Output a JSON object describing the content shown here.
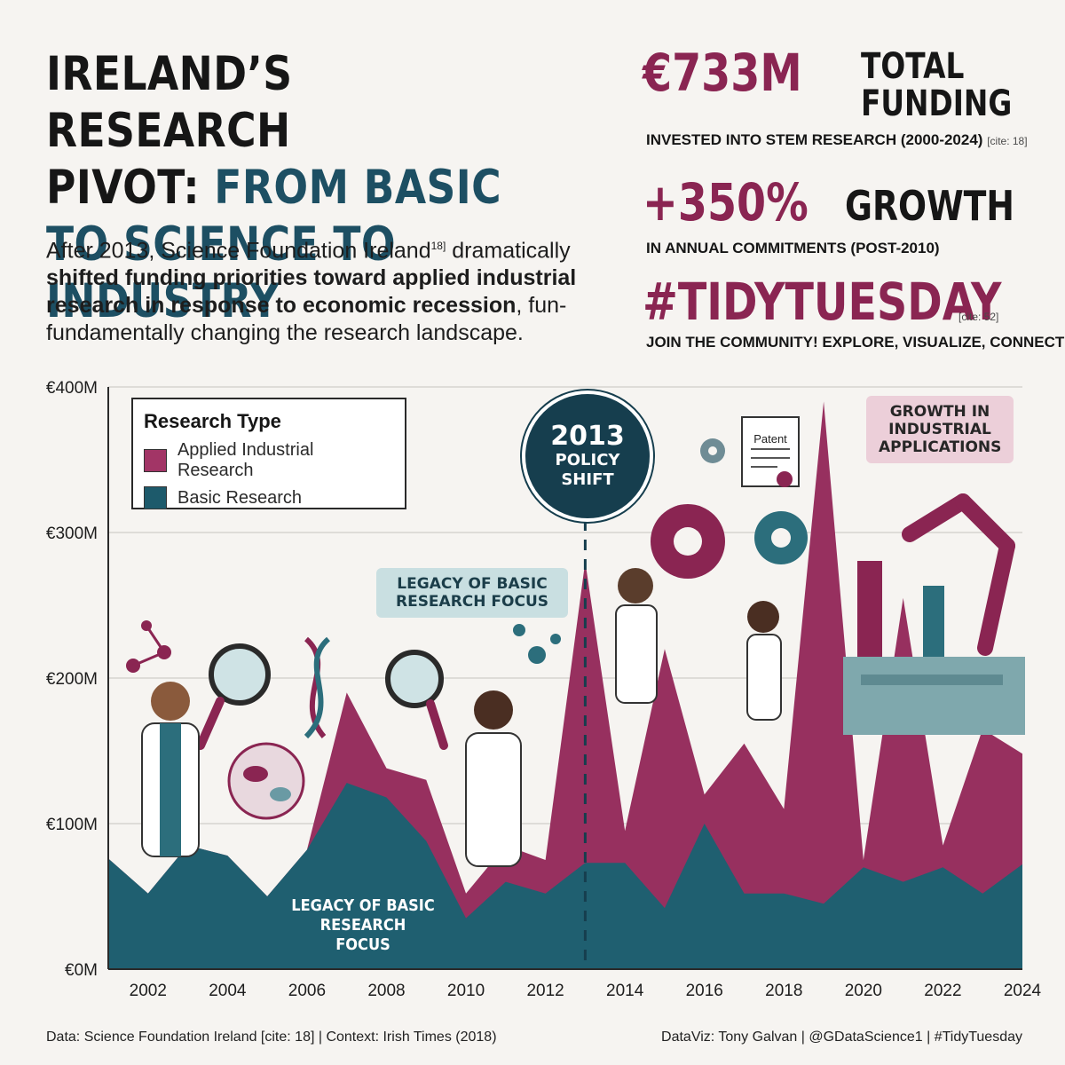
{
  "header": {
    "title_line1": "IRELAND’S RESEARCH",
    "title_line2_a": "PIVOT: ",
    "title_line2_b": "FROM BASIC",
    "title_line3": "TO  SCIENCE TO INDUSTRY",
    "intro_a": "After 2013, Science Foundation Ireland",
    "intro_sup": "18]",
    "intro_b": " dramatically ",
    "intro_bold": "shifted funding priorities toward applied industrial research in response to economic recession",
    "intro_c": ", fun-fundamentally changing the research landscape."
  },
  "stats": {
    "s1_value": "€733M",
    "s1_label": "TOTAL FUNDING",
    "s1_sub": "INVESTED INTO STEM RESEARCH (2000-2024)",
    "s1_cite": "[cite: 18]",
    "s2_value": "+350%",
    "s2_label": "GROWTH",
    "s2_sub": "IN ANNUAL COMMITMENTS (POST-2010)",
    "s3_value": "#TIDYTUESDAY",
    "s3_cite": "[cite: 52]",
    "s3_sub": "JOIN THE COMMUNITY! EXPLORE, VISUALIZE, CONNECT"
  },
  "legend": {
    "title": "Research Type",
    "applied": "Applied Industrial Research",
    "basic": "Basic Research"
  },
  "annotations": {
    "policy_year": "2013",
    "policy_text_1": "POLICY",
    "policy_text_2": "SHIFT",
    "legacy_bubble": "LEGACY OF BASIC RESEARCH FOCUS",
    "legacy_chart": "LEGACY OF BASIC RESEARCH FOCUS",
    "growth_bubble": "GROWTH IN INDUSTRIAL APPLICATIONS",
    "patent": "Patent"
  },
  "footer": {
    "left": "Data: Science Foundation Ireland [cite: 18] | Context: Irish Times (2018)",
    "right": "DataViz: Tony Galvan | @GDataScience1 | #TidyTuesday"
  },
  "colors": {
    "applied": "#8a2552",
    "basic": "#1d5a6b",
    "navy": "#163e4e",
    "background": "#f6f4f1"
  },
  "chart_data": {
    "type": "area",
    "x": [
      2001,
      2002,
      2003,
      2004,
      2005,
      2006,
      2007,
      2008,
      2009,
      2010,
      2011,
      2012,
      2013,
      2014,
      2015,
      2016,
      2017,
      2018,
      2019,
      2020,
      2021,
      2022,
      2023,
      2024
    ],
    "xticks": [
      "2002",
      "2004",
      "2006",
      "2008",
      "2010",
      "2012",
      "2014",
      "2016",
      "2018",
      "2020",
      "2022",
      "2024"
    ],
    "yticks": [
      "€0M",
      "€100M",
      "€200M",
      "€300M",
      "€400M"
    ],
    "ylim": [
      0,
      400
    ],
    "series": [
      {
        "name": "Basic Research",
        "values": [
          76,
          52,
          85,
          78,
          50,
          82,
          128,
          118,
          88,
          35,
          60,
          52,
          73,
          73,
          42,
          100,
          52,
          52,
          45,
          70,
          60,
          70,
          52,
          72
        ]
      },
      {
        "name": "Applied Industrial Research",
        "values": [
          76,
          52,
          85,
          78,
          50,
          82,
          190,
          138,
          130,
          52,
          85,
          75,
          280,
          95,
          220,
          120,
          155,
          110,
          390,
          75,
          255,
          85,
          165,
          148
        ]
      }
    ],
    "stacked": false,
    "grid": true,
    "legend_position": "top-left",
    "title": "",
    "xlabel": "",
    "ylabel": ""
  }
}
